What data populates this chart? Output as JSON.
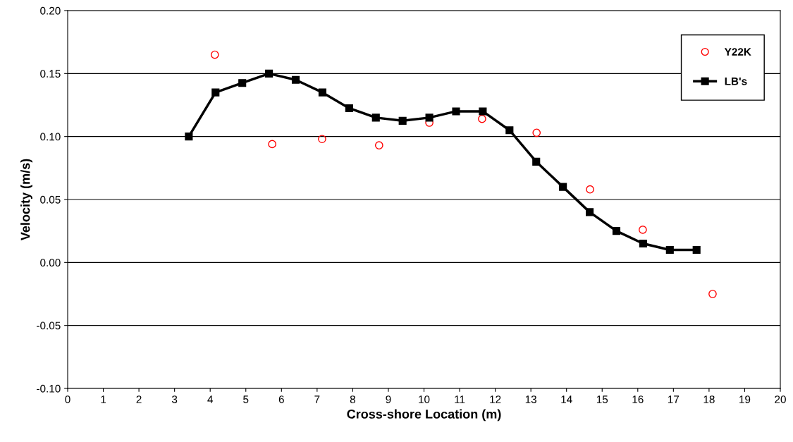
{
  "chart_data": {
    "type": "line",
    "xlabel": "Cross-shore Location (m)",
    "ylabel": "Velocity (m/s)",
    "xlim": [
      0,
      20
    ],
    "xticks": [
      0,
      1,
      2,
      3,
      4,
      5,
      6,
      7,
      8,
      9,
      10,
      11,
      12,
      13,
      14,
      15,
      16,
      17,
      18,
      19,
      20
    ],
    "ylim": [
      -0.1,
      0.2
    ],
    "yticks": [
      {
        "value": -0.1,
        "label": "-0.10"
      },
      {
        "value": -0.05,
        "label": "-0.05"
      },
      {
        "value": 0,
        "label": "0.00"
      },
      {
        "value": 0.05,
        "label": "0.05"
      },
      {
        "value": 0.1,
        "label": "0.10"
      },
      {
        "value": 0.15,
        "label": "0.15"
      },
      {
        "value": 0.2,
        "label": "0.20"
      }
    ],
    "grid": "y",
    "legend": "top right",
    "series": [
      {
        "name": "Y22K",
        "type": "scatter",
        "marker": "circle",
        "color": "#ff0000",
        "x": [
          4.13,
          5.74,
          7.14,
          8.74,
          10.15,
          11.63,
          13.16,
          14.66,
          16.14,
          18.1
        ],
        "values": [
          0.165,
          0.094,
          0.098,
          0.093,
          0.111,
          0.114,
          0.103,
          0.058,
          0.026,
          -0.025
        ]
      },
      {
        "name": "LB's",
        "marker": "square",
        "line_style": "solid",
        "color": "#000000",
        "x": [
          3.4,
          4.15,
          4.9,
          5.65,
          6.4,
          7.15,
          7.9,
          8.65,
          9.4,
          10.15,
          10.9,
          11.65,
          12.4,
          13.15,
          13.9,
          14.65,
          15.4,
          16.15,
          16.9,
          17.65
        ],
        "values": [
          0.1,
          0.135,
          0.1425,
          0.15,
          0.145,
          0.135,
          0.1225,
          0.115,
          0.1125,
          0.115,
          0.12,
          0.12,
          0.105,
          0.08,
          0.06,
          0.04,
          0.025,
          0.015,
          0.01,
          0.01
        ]
      }
    ]
  }
}
